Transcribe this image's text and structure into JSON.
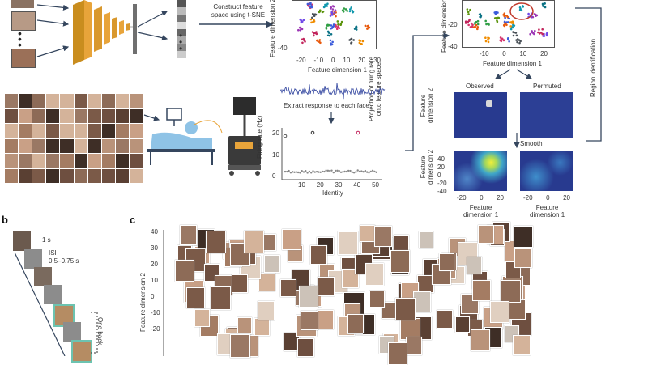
{
  "panel_a": {
    "tsne_label": "Construct feature\nspace using t-SNE",
    "scatter_left": {
      "ylabel": "Feature dimension 2",
      "xlabel": "Feature dimension 1",
      "xticks": [
        "-20",
        "-10",
        "0",
        "10",
        "20",
        "30"
      ],
      "yticks": [
        "-40"
      ]
    },
    "scatter_right": {
      "ylabel": "Feature dimension 2",
      "xlabel": "Feature dimension 1",
      "xticks": [
        "-10",
        "0",
        "10",
        "20"
      ],
      "yticks": [
        "-20",
        "-40"
      ]
    },
    "extract_label": "Extract response to each face",
    "projection_label": "Projection of firing rate\nonto feature space",
    "region_label": "Region identification",
    "observed_label": "Observed",
    "permuted_label": "Permuted",
    "smooth_label": "Smooth",
    "firing_chart": {
      "ylabel": "Firing rate (Hz)",
      "xlabel": "Identity",
      "yticks": [
        "0",
        "10",
        "20"
      ],
      "xticks": [
        "10",
        "20",
        "30",
        "40",
        "50"
      ]
    },
    "heatmaps": {
      "ylabel": "Feature\ndimension 2",
      "yticks": [
        "40",
        "20",
        "0",
        "-20",
        "-40"
      ],
      "xticks": [
        "-20",
        "0",
        "20"
      ],
      "xlabel": "Feature\ndimension 1"
    },
    "colors": {
      "accent_orange": "#e8a43a",
      "heat_dark": "#283a8f",
      "heat_mid": "#3fa6c9",
      "heat_hot": "#f3ef3a",
      "scrub_blue": "#8fc3e6",
      "arrow_navy": "#35465e"
    }
  },
  "panel_b": {
    "letter": "b",
    "dur_label": "1 s",
    "isi_label": "ISI\n0.5–0.75 s",
    "one_back_label": "One back"
  },
  "panel_c": {
    "letter": "c",
    "ylabel": "Feature dimension 2",
    "yticks": [
      "40",
      "30",
      "20",
      "10",
      "0",
      "-10",
      "-20"
    ]
  }
}
